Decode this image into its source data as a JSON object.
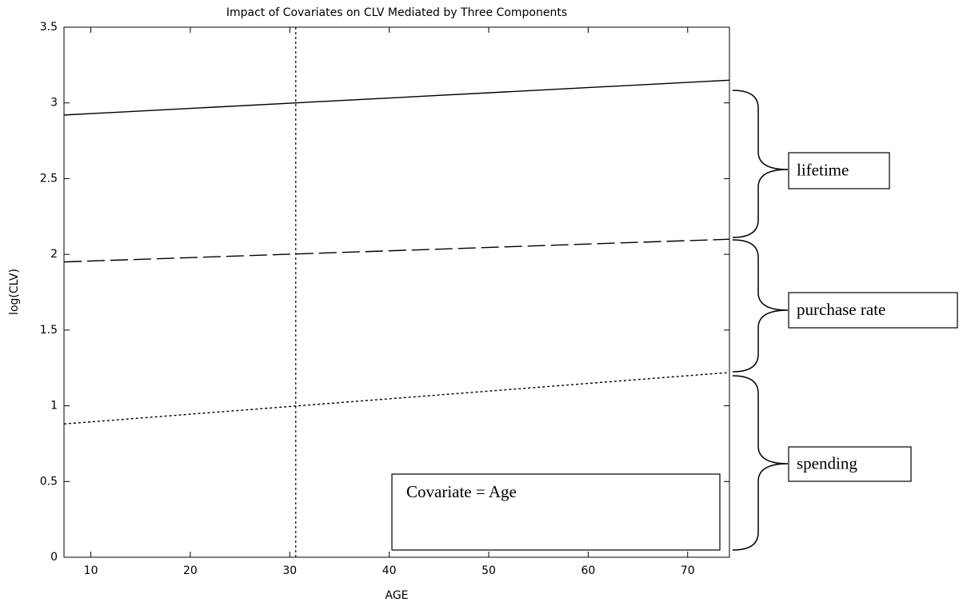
{
  "chart_data": {
    "type": "line",
    "title": "Impact of Covariates on CLV Mediated by Three Components",
    "x_label": "AGE",
    "y_label": "log(CLV)",
    "series": [
      {
        "name": "lifetime",
        "color": "#000000",
        "dash": "solid",
        "x": [
          7.3,
          74.2
        ],
        "values": [
          2.92,
          3.15
        ]
      },
      {
        "name": "purchase rate",
        "color": "#000000",
        "dash": "dashed",
        "x": [
          7.3,
          74.2
        ],
        "values": [
          1.95,
          2.1
        ]
      },
      {
        "name": "spending",
        "color": "#000000",
        "dash": "dotted",
        "x": [
          7.3,
          74.2
        ],
        "values": [
          0.88,
          1.22
        ]
      }
    ],
    "vline_x": 30.6,
    "annotation": "Covariate = Age",
    "xlim": [
      7.3,
      74.2
    ],
    "xticks": [
      10,
      20,
      30,
      40,
      50,
      60,
      70
    ],
    "ylim": [
      0,
      3.5
    ],
    "yticks": [
      0,
      0.5,
      1,
      1.5,
      2,
      2.5,
      3,
      3.5
    ]
  }
}
